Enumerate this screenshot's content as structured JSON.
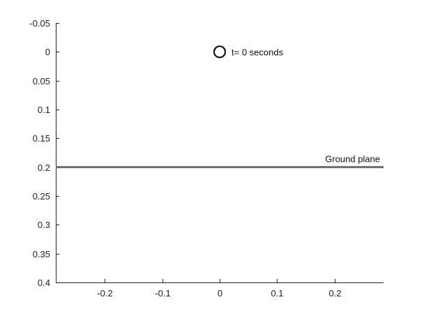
{
  "chart_data": {
    "type": "scatter",
    "title": "",
    "xlabel": "",
    "ylabel": "",
    "xlim": [
      -0.285,
      0.285
    ],
    "ylim": [
      -0.05,
      0.4
    ],
    "y_reversed": true,
    "x_ticks": [
      -0.2,
      -0.1,
      0,
      0.1,
      0.2
    ],
    "x_tick_labels": [
      "-0.2",
      "-0.1",
      "0",
      "0.1",
      "0.2"
    ],
    "y_ticks": [
      -0.05,
      0,
      0.05,
      0.1,
      0.15,
      0.2,
      0.25,
      0.3,
      0.35,
      0.4
    ],
    "y_tick_labels": [
      "-0.05",
      "0",
      "0.05",
      "0.1",
      "0.15",
      "0.2",
      "0.25",
      "0.3",
      "0.35",
      "0.4"
    ],
    "grid": false,
    "points": [
      {
        "x": 0,
        "y": 0,
        "marker": "open-circle",
        "color": "#111111"
      }
    ],
    "ground_plane": {
      "y": 0.2,
      "color": "#6e6e6e"
    },
    "annotations": {
      "point_label": "t= 0 seconds",
      "ground_label": "Ground plane"
    },
    "colors": {
      "axis": "#222222",
      "ground": "#6e6e6e",
      "marker": "#111111"
    }
  }
}
